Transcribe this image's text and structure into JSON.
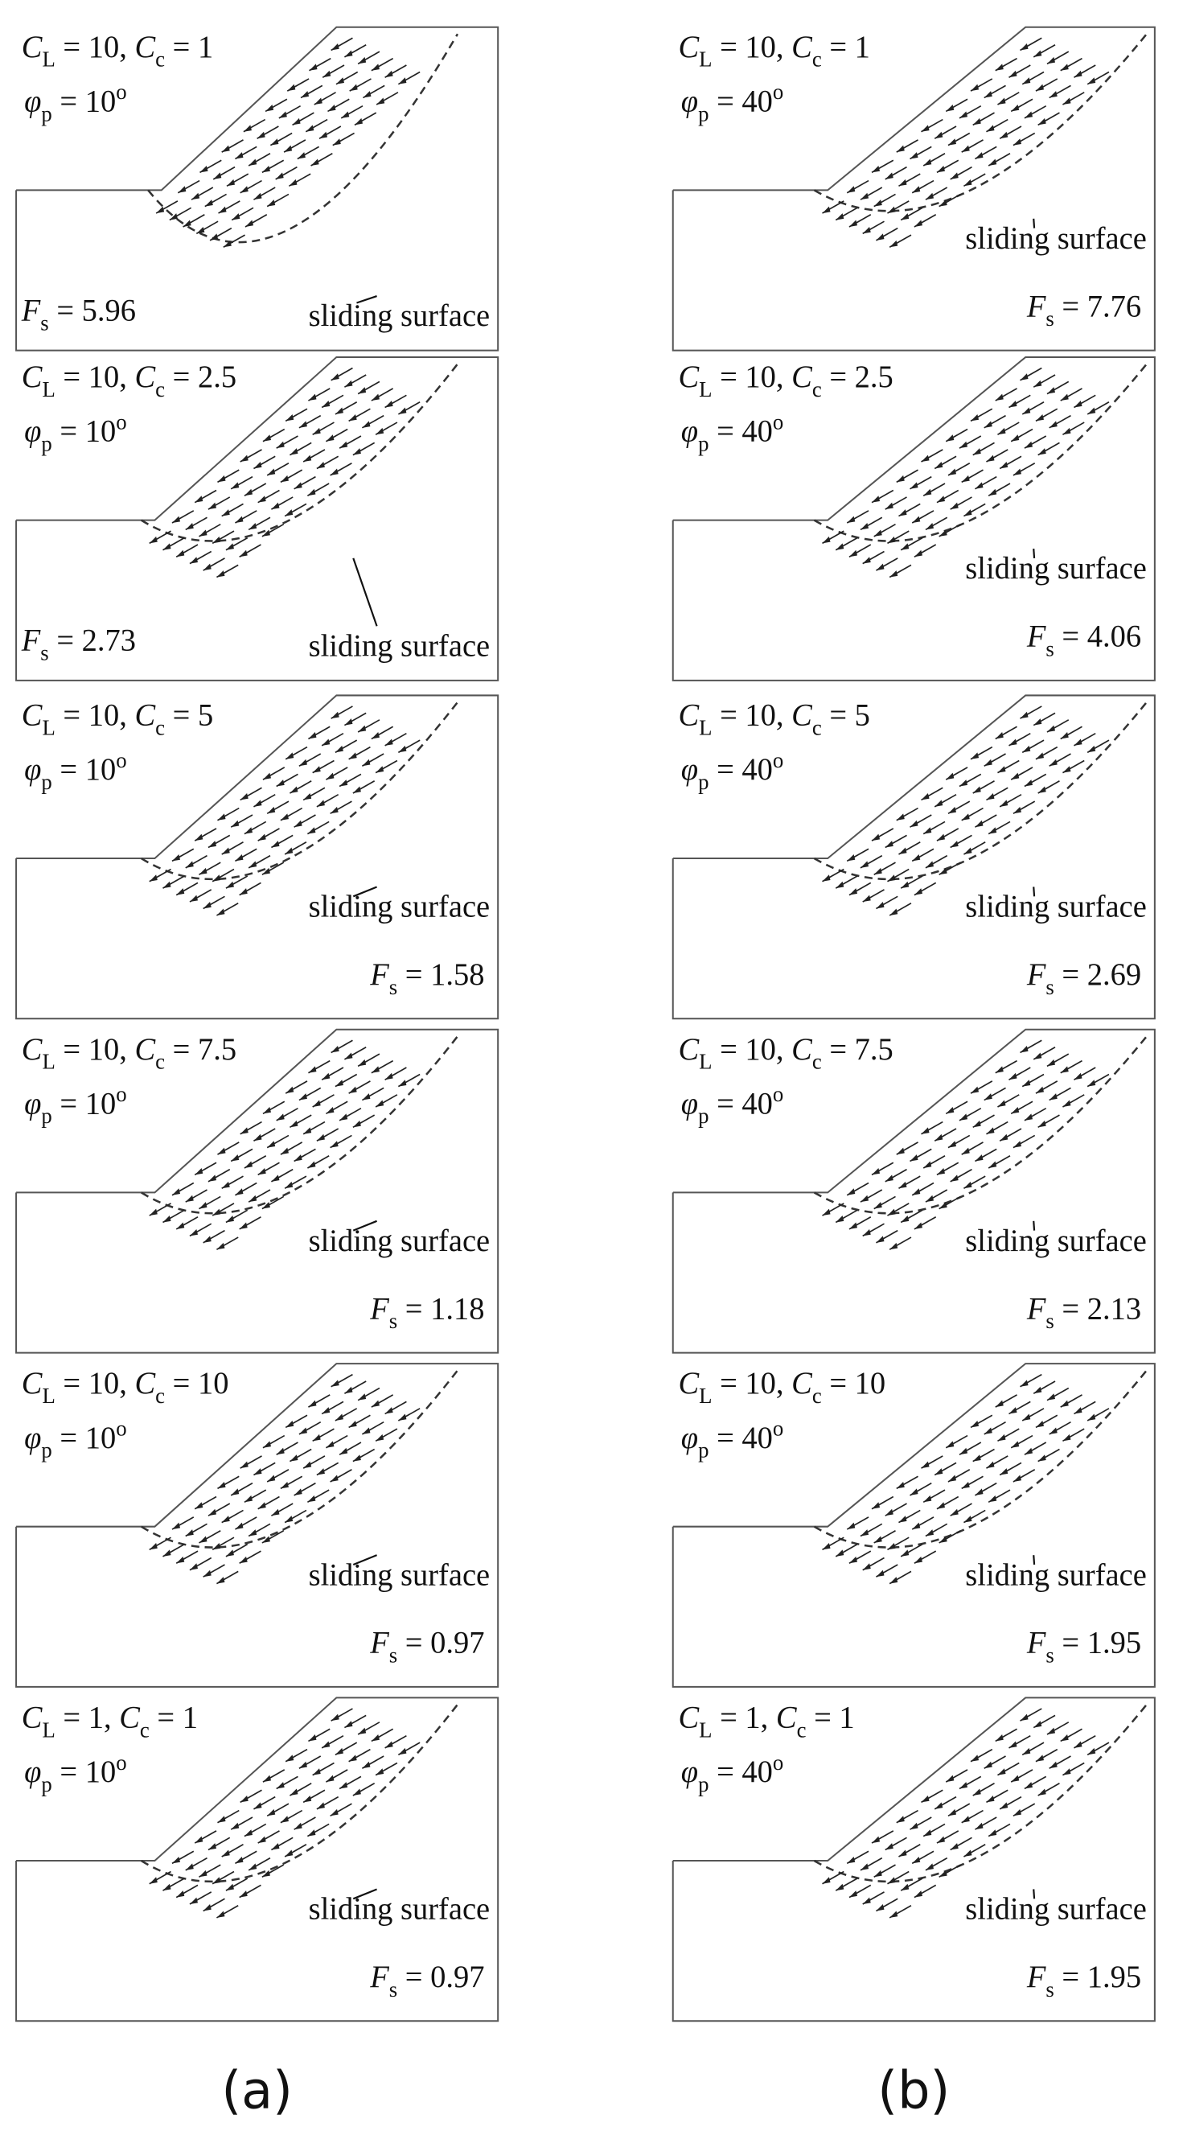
{
  "panels": [
    {
      "caption": "(a)",
      "plots": [
        {
          "l1": [
            [
              "C",
              "i"
            ],
            [
              "L",
              "sub"
            ],
            [
              " = 10, ",
              ""
            ],
            [
              "C",
              "i"
            ],
            [
              "c",
              "sub"
            ],
            [
              " = 1",
              ""
            ]
          ],
          "l2": [
            [
              "φ",
              "i"
            ],
            [
              "p",
              "sub"
            ],
            [
              " = 10",
              ""
            ],
            [
              "o",
              "sup"
            ]
          ],
          "fs": [
            [
              "F",
              "i"
            ],
            [
              "s",
              "sub"
            ],
            [
              " = 5.96",
              ""
            ]
          ],
          "label": "sliding surface"
        },
        {
          "l1": [
            [
              "C",
              "i"
            ],
            [
              "L",
              "sub"
            ],
            [
              " = 10, ",
              ""
            ],
            [
              "C",
              "i"
            ],
            [
              "c",
              "sub"
            ],
            [
              " = 2.5",
              ""
            ]
          ],
          "l2": [
            [
              "φ",
              "i"
            ],
            [
              "p",
              "sub"
            ],
            [
              " = 10",
              ""
            ],
            [
              "o",
              "sup"
            ]
          ],
          "fs": [
            [
              "F",
              "i"
            ],
            [
              "s",
              "sub"
            ],
            [
              " = 2.73",
              ""
            ]
          ],
          "label": "sliding surface"
        },
        {
          "l1": [
            [
              "C",
              "i"
            ],
            [
              "L",
              "sub"
            ],
            [
              " = 10, ",
              ""
            ],
            [
              "C",
              "i"
            ],
            [
              "c",
              "sub"
            ],
            [
              " = 5",
              ""
            ]
          ],
          "l2": [
            [
              "φ",
              "i"
            ],
            [
              "p",
              "sub"
            ],
            [
              " = 10",
              ""
            ],
            [
              "o",
              "sup"
            ]
          ],
          "fs": [
            [
              "F",
              "i"
            ],
            [
              "s",
              "sub"
            ],
            [
              " = 1.58",
              ""
            ]
          ],
          "label": "sliding surface"
        },
        {
          "l1": [
            [
              "C",
              "i"
            ],
            [
              "L",
              "sub"
            ],
            [
              " = 10, ",
              ""
            ],
            [
              "C",
              "i"
            ],
            [
              "c",
              "sub"
            ],
            [
              " = 7.5",
              ""
            ]
          ],
          "l2": [
            [
              "φ",
              "i"
            ],
            [
              "p",
              "sub"
            ],
            [
              " = 10",
              ""
            ],
            [
              "o",
              "sup"
            ]
          ],
          "fs": [
            [
              "F",
              "i"
            ],
            [
              "s",
              "sub"
            ],
            [
              " = 1.18",
              ""
            ]
          ],
          "label": "sliding surface"
        },
        {
          "l1": [
            [
              "C",
              "i"
            ],
            [
              "L",
              "sub"
            ],
            [
              " = 10, ",
              ""
            ],
            [
              "C",
              "i"
            ],
            [
              "c",
              "sub"
            ],
            [
              " = 10",
              ""
            ]
          ],
          "l2": [
            [
              "φ",
              "i"
            ],
            [
              "p",
              "sub"
            ],
            [
              " = 10",
              ""
            ],
            [
              "o",
              "sup"
            ]
          ],
          "fs": [
            [
              "F",
              "i"
            ],
            [
              "s",
              "sub"
            ],
            [
              " = 0.97",
              ""
            ]
          ],
          "label": "sliding surface"
        },
        {
          "l1": [
            [
              "C",
              "i"
            ],
            [
              "L",
              "sub"
            ],
            [
              " = 1, ",
              ""
            ],
            [
              "C",
              "i"
            ],
            [
              "c",
              "sub"
            ],
            [
              " = 1",
              ""
            ]
          ],
          "l2": [
            [
              "φ",
              "i"
            ],
            [
              "p",
              "sub"
            ],
            [
              " = 10",
              ""
            ],
            [
              "o",
              "sup"
            ]
          ],
          "fs": [
            [
              "F",
              "i"
            ],
            [
              "s",
              "sub"
            ],
            [
              " = 0.97",
              ""
            ]
          ],
          "label": "sliding surface"
        }
      ]
    },
    {
      "caption": "(b)",
      "plots": [
        {
          "l1": [
            [
              "C",
              "i"
            ],
            [
              "L",
              "sub"
            ],
            [
              " = 10, ",
              ""
            ],
            [
              "C",
              "i"
            ],
            [
              "c",
              "sub"
            ],
            [
              " = 1",
              ""
            ]
          ],
          "l2": [
            [
              "φ",
              "i"
            ],
            [
              "p",
              "sub"
            ],
            [
              " = 40",
              ""
            ],
            [
              "o",
              "sup"
            ]
          ],
          "fs": [
            [
              "F",
              "i"
            ],
            [
              "s",
              "sub"
            ],
            [
              " = 7.76",
              ""
            ]
          ],
          "label": "sliding surface"
        },
        {
          "l1": [
            [
              "C",
              "i"
            ],
            [
              "L",
              "sub"
            ],
            [
              " = 10, ",
              ""
            ],
            [
              "C",
              "i"
            ],
            [
              "c",
              "sub"
            ],
            [
              " = 2.5",
              ""
            ]
          ],
          "l2": [
            [
              "φ",
              "i"
            ],
            [
              "p",
              "sub"
            ],
            [
              " = 40",
              ""
            ],
            [
              "o",
              "sup"
            ]
          ],
          "fs": [
            [
              "F",
              "i"
            ],
            [
              "s",
              "sub"
            ],
            [
              " = 4.06",
              ""
            ]
          ],
          "label": "sliding surface"
        },
        {
          "l1": [
            [
              "C",
              "i"
            ],
            [
              "L",
              "sub"
            ],
            [
              " = 10, ",
              ""
            ],
            [
              "C",
              "i"
            ],
            [
              "c",
              "sub"
            ],
            [
              " = 5",
              ""
            ]
          ],
          "l2": [
            [
              "φ",
              "i"
            ],
            [
              "p",
              "sub"
            ],
            [
              " = 40",
              ""
            ],
            [
              "o",
              "sup"
            ]
          ],
          "fs": [
            [
              "F",
              "i"
            ],
            [
              "s",
              "sub"
            ],
            [
              " = 2.69",
              ""
            ]
          ],
          "label": "sliding surface"
        },
        {
          "l1": [
            [
              "C",
              "i"
            ],
            [
              "L",
              "sub"
            ],
            [
              " = 10, ",
              ""
            ],
            [
              "C",
              "i"
            ],
            [
              "c",
              "sub"
            ],
            [
              " = 7.5",
              ""
            ]
          ],
          "l2": [
            [
              "φ",
              "i"
            ],
            [
              "p",
              "sub"
            ],
            [
              " = 40",
              ""
            ],
            [
              "o",
              "sup"
            ]
          ],
          "fs": [
            [
              "F",
              "i"
            ],
            [
              "s",
              "sub"
            ],
            [
              " = 2.13",
              ""
            ]
          ],
          "label": "sliding surface"
        },
        {
          "l1": [
            [
              "C",
              "i"
            ],
            [
              "L",
              "sub"
            ],
            [
              " = 10, ",
              ""
            ],
            [
              "C",
              "i"
            ],
            [
              "c",
              "sub"
            ],
            [
              " = 10",
              ""
            ]
          ],
          "l2": [
            [
              "φ",
              "i"
            ],
            [
              "p",
              "sub"
            ],
            [
              " = 40",
              ""
            ],
            [
              "o",
              "sup"
            ]
          ],
          "fs": [
            [
              "F",
              "i"
            ],
            [
              "s",
              "sub"
            ],
            [
              " = 1.95",
              ""
            ]
          ],
          "label": "sliding surface"
        },
        {
          "l1": [
            [
              "C",
              "i"
            ],
            [
              "L",
              "sub"
            ],
            [
              " = 1, ",
              ""
            ],
            [
              "C",
              "i"
            ],
            [
              "c",
              "sub"
            ],
            [
              " = 1",
              ""
            ]
          ],
          "l2": [
            [
              "φ",
              "i"
            ],
            [
              "p",
              "sub"
            ],
            [
              " = 40",
              ""
            ],
            [
              "o",
              "sup"
            ]
          ],
          "fs": [
            [
              "F",
              "i"
            ],
            [
              "s",
              "sub"
            ],
            [
              " = 1.95",
              ""
            ]
          ],
          "label": "sliding surface"
        }
      ]
    }
  ]
}
